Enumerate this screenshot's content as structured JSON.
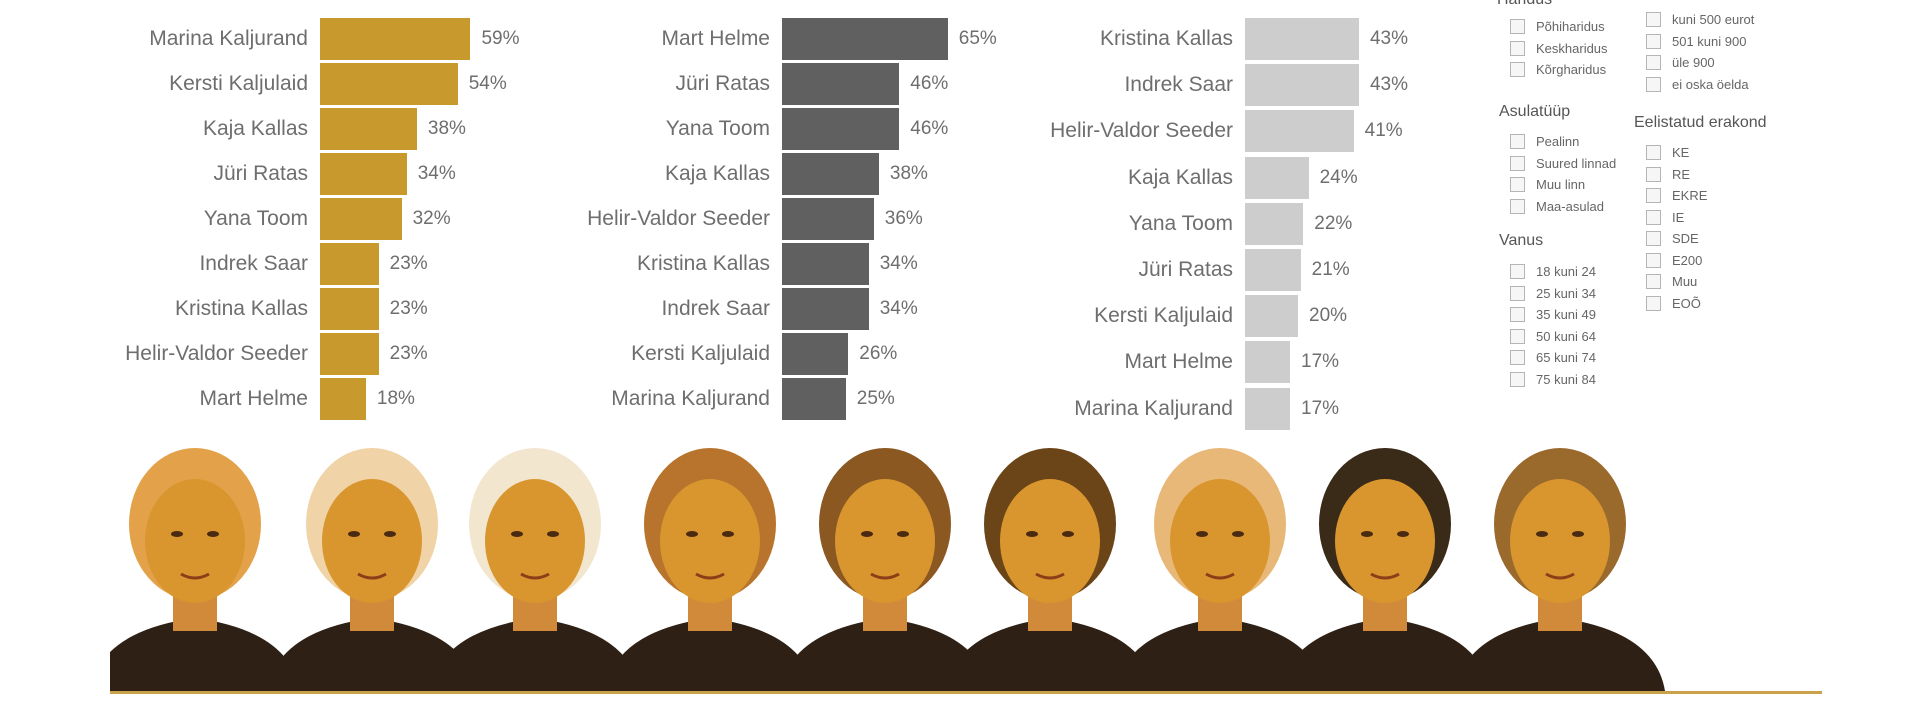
{
  "chart_data": [
    {
      "type": "bar",
      "orientation": "horizontal",
      "color": "#c89a2e",
      "categories": [
        "Marina Kaljurand",
        "Kersti Kaljulaid",
        "Kaja Kallas",
        "Jüri Ratas",
        "Yana Toom",
        "Indrek Saar",
        "Kristina Kallas",
        "Helir-Valdor Seeder",
        "Mart Helme"
      ],
      "values": [
        59,
        54,
        38,
        34,
        32,
        23,
        23,
        23,
        18
      ],
      "labels": [
        "59%",
        "54%",
        "38%",
        "34%",
        "32%",
        "23%",
        "23%",
        "23%",
        "18%"
      ],
      "xlim": [
        0,
        65
      ]
    },
    {
      "type": "bar",
      "orientation": "horizontal",
      "color": "#606060",
      "categories": [
        "Mart Helme",
        "Jüri Ratas",
        "Yana Toom",
        "Kaja Kallas",
        "Helir-Valdor Seeder",
        "Kristina Kallas",
        "Indrek Saar",
        "Kersti Kaljulaid",
        "Marina Kaljurand"
      ],
      "values": [
        65,
        46,
        46,
        38,
        36,
        34,
        34,
        26,
        25
      ],
      "labels": [
        "65%",
        "46%",
        "46%",
        "38%",
        "36%",
        "34%",
        "34%",
        "26%",
        "25%"
      ],
      "xlim": [
        0,
        65
      ]
    },
    {
      "type": "bar",
      "orientation": "horizontal",
      "color": "#cdcdcd",
      "categories": [
        "Kristina Kallas",
        "Indrek Saar",
        "Helir-Valdor Seeder",
        "Kaja Kallas",
        "Yana Toom",
        "Jüri Ratas",
        "Kersti Kaljulaid",
        "Mart Helme",
        "Marina Kaljurand"
      ],
      "values": [
        43,
        43,
        41,
        24,
        22,
        21,
        20,
        17,
        17
      ],
      "labels": [
        "43%",
        "43%",
        "41%",
        "24%",
        "22%",
        "21%",
        "20%",
        "17%",
        "17%"
      ],
      "xlim": [
        0,
        65
      ]
    }
  ],
  "filters": {
    "haridus": {
      "title": "Haridus",
      "items": [
        "Põhiharidus",
        "Keskharidus",
        "Kõrgharidus"
      ]
    },
    "sissetulek": {
      "items": [
        "kuni 500 eurot",
        "501 kuni 900",
        "üle 900",
        "ei oska öelda"
      ]
    },
    "asulatyyp": {
      "title": "Asulatüüp",
      "items": [
        "Pealinn",
        "Suured linnad",
        "Muu linn",
        "Maa-asulad"
      ]
    },
    "erakond": {
      "title": "Eelistatud erakond",
      "items": [
        "KE",
        "RE",
        "EKRE",
        "IE",
        "SDE",
        "E200",
        "Muu",
        "EOÕ"
      ]
    },
    "vanus": {
      "title": "Vanus",
      "items": [
        "18 kuni 24",
        "25 kuni 34",
        "35 kuni 49",
        "50 kuni 64",
        "65 kuni 74",
        "75 kuni 84"
      ]
    }
  },
  "photos": {
    "count": 9,
    "tint": "#d9962e"
  }
}
